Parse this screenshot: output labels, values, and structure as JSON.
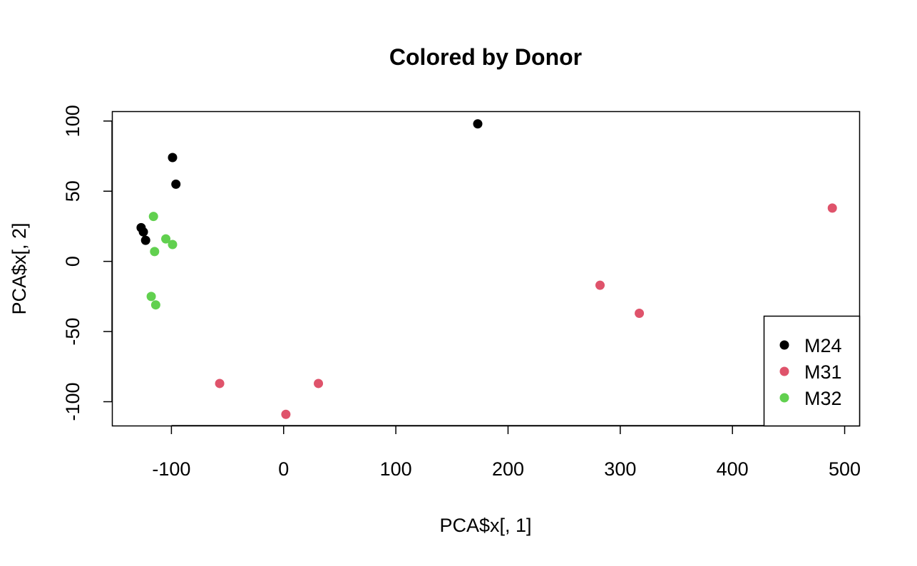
{
  "chart_data": {
    "type": "scatter",
    "title": "Colored by Donor",
    "xlabel": "PCA$x[, 1]",
    "ylabel": "PCA$x[, 2]",
    "xlim": [
      -153,
      513
    ],
    "ylim": [
      -117,
      107
    ],
    "xticks": [
      -100,
      0,
      100,
      200,
      300,
      400,
      500
    ],
    "yticks": [
      -100,
      -50,
      0,
      50,
      100
    ],
    "grid": false,
    "legend_position": "bottom-right",
    "series": [
      {
        "name": "M24",
        "color": "#000000",
        "points": [
          [
            173,
            98
          ],
          [
            -99,
            74
          ],
          [
            -96,
            55
          ],
          [
            -127,
            24
          ],
          [
            -125,
            21
          ],
          [
            -123,
            15
          ]
        ]
      },
      {
        "name": "M31",
        "color": "#DF536B",
        "points": [
          [
            489,
            38
          ],
          [
            282,
            -17
          ],
          [
            317,
            -37
          ],
          [
            -57,
            -87
          ],
          [
            31,
            -87
          ],
          [
            2,
            -109
          ]
        ]
      },
      {
        "name": "M32",
        "color": "#61D04F",
        "points": [
          [
            -116,
            32
          ],
          [
            -105,
            16
          ],
          [
            -99,
            12
          ],
          [
            -115,
            7
          ],
          [
            -118,
            -25
          ],
          [
            -114,
            -31
          ]
        ]
      }
    ]
  }
}
